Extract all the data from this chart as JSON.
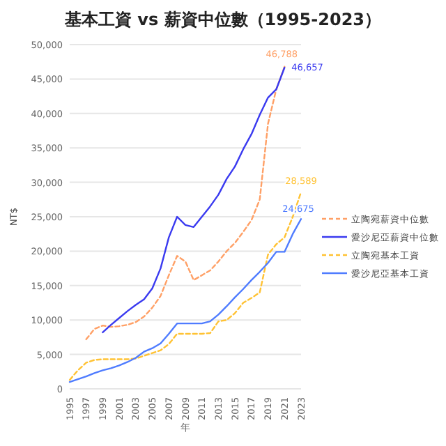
{
  "chart_data": {
    "type": "line",
    "title": "基本工資 vs 薪資中位數（1995-2023）",
    "xlabel": "年",
    "ylabel": "NT$",
    "xlim": [
      1995,
      2023
    ],
    "xticks": [
      1995,
      1997,
      1999,
      2001,
      2003,
      2005,
      2007,
      2009,
      2011,
      2013,
      2015,
      2017,
      2019,
      2021,
      2023
    ],
    "ylim": [
      0,
      50000
    ],
    "yticks": [
      {
        "value": 0,
        "label": "0"
      },
      {
        "value": 5000,
        "label": "5,000"
      },
      {
        "value": 10000,
        "label": "10,000"
      },
      {
        "value": 15000,
        "label": "15,000"
      },
      {
        "value": 20000,
        "label": "20,000"
      },
      {
        "value": 25000,
        "label": "25,000"
      },
      {
        "value": 30000,
        "label": "30,000"
      },
      {
        "value": 35000,
        "label": "35,000"
      },
      {
        "value": 40000,
        "label": "40,000"
      },
      {
        "value": 45000,
        "label": "45,000"
      },
      {
        "value": 50000,
        "label": "50,000"
      }
    ],
    "grid": "y",
    "legend": "right",
    "marker": "none",
    "series": [
      {
        "name": "立陶宛薪資中位數",
        "color": "#ffa066",
        "line_style": "dashed",
        "x": [
          1997,
          1998,
          1999,
          2000,
          2001,
          2002,
          2003,
          2004,
          2005,
          2006,
          2007,
          2008,
          2009,
          2010,
          2011,
          2012,
          2013,
          2014,
          2015,
          2016,
          2017,
          2018,
          2019,
          2020,
          2021
        ],
        "values": [
          7200,
          8700,
          9200,
          9000,
          9100,
          9300,
          9700,
          10500,
          11800,
          13500,
          16500,
          19300,
          18500,
          15800,
          16500,
          17200,
          18500,
          20000,
          21200,
          22800,
          24500,
          27500,
          38500,
          43500,
          46788
        ],
        "value_labels": [
          null,
          null,
          null,
          null,
          null,
          null,
          null,
          null,
          null,
          null,
          null,
          null,
          null,
          null,
          null,
          null,
          null,
          null,
          null,
          null,
          null,
          null,
          null,
          null,
          "46,788"
        ]
      },
      {
        "name": "愛沙尼亞薪資中位數",
        "color": "#3a3af0",
        "line_style": "solid",
        "x": [
          1999,
          2000,
          2001,
          2002,
          2003,
          2004,
          2005,
          2006,
          2007,
          2008,
          2009,
          2010,
          2011,
          2012,
          2013,
          2014,
          2015,
          2016,
          2017,
          2018,
          2019,
          2020,
          2021
        ],
        "values": [
          8200,
          9300,
          10300,
          11300,
          12200,
          13000,
          14600,
          17500,
          22000,
          25000,
          23800,
          23500,
          25000,
          26500,
          28200,
          30500,
          32300,
          34800,
          37000,
          39800,
          42300,
          43500,
          46657
        ],
        "value_labels": [
          null,
          null,
          null,
          null,
          null,
          null,
          null,
          null,
          null,
          null,
          null,
          null,
          null,
          null,
          null,
          null,
          null,
          null,
          null,
          null,
          null,
          null,
          "46,657"
        ]
      },
      {
        "name": "立陶宛基本工資",
        "color": "#ffc233",
        "line_style": "dashed",
        "x": [
          1995,
          1996,
          1997,
          1998,
          1999,
          2000,
          2001,
          2002,
          2003,
          2004,
          2005,
          2006,
          2007,
          2008,
          2009,
          2010,
          2011,
          2012,
          2013,
          2014,
          2015,
          2016,
          2017,
          2018,
          2019,
          2020,
          2021,
          2022,
          2023
        ],
        "values": [
          1300,
          2700,
          3800,
          4200,
          4300,
          4300,
          4300,
          4300,
          4400,
          4800,
          5200,
          5600,
          6500,
          8000,
          8000,
          8000,
          8000,
          8100,
          9800,
          10000,
          11000,
          12500,
          13200,
          14000,
          19500,
          21000,
          22000,
          25000,
          28589
        ],
        "value_labels": [
          null,
          null,
          null,
          null,
          null,
          null,
          null,
          null,
          null,
          null,
          null,
          null,
          null,
          null,
          null,
          null,
          null,
          null,
          null,
          null,
          null,
          null,
          null,
          null,
          null,
          null,
          null,
          null,
          "28,589"
        ]
      },
      {
        "name": "愛沙尼亞基本工資",
        "color": "#4f7cff",
        "line_style": "solid",
        "x": [
          1995,
          1996,
          1997,
          1998,
          1999,
          2000,
          2001,
          2002,
          2003,
          2004,
          2005,
          2006,
          2007,
          2008,
          2009,
          2010,
          2011,
          2012,
          2013,
          2014,
          2015,
          2016,
          2017,
          2018,
          2019,
          2020,
          2021,
          2022,
          2023
        ],
        "values": [
          1000,
          1400,
          1800,
          2300,
          2700,
          3000,
          3400,
          3900,
          4500,
          5400,
          5900,
          6600,
          8000,
          9500,
          9500,
          9500,
          9500,
          9800,
          10800,
          12000,
          13300,
          14500,
          15800,
          17000,
          18300,
          19900,
          19900,
          22500,
          24675
        ],
        "value_labels": [
          null,
          null,
          null,
          null,
          null,
          null,
          null,
          null,
          null,
          null,
          null,
          null,
          null,
          null,
          null,
          null,
          null,
          null,
          null,
          null,
          null,
          null,
          null,
          null,
          null,
          null,
          null,
          null,
          "24,675"
        ]
      }
    ]
  }
}
